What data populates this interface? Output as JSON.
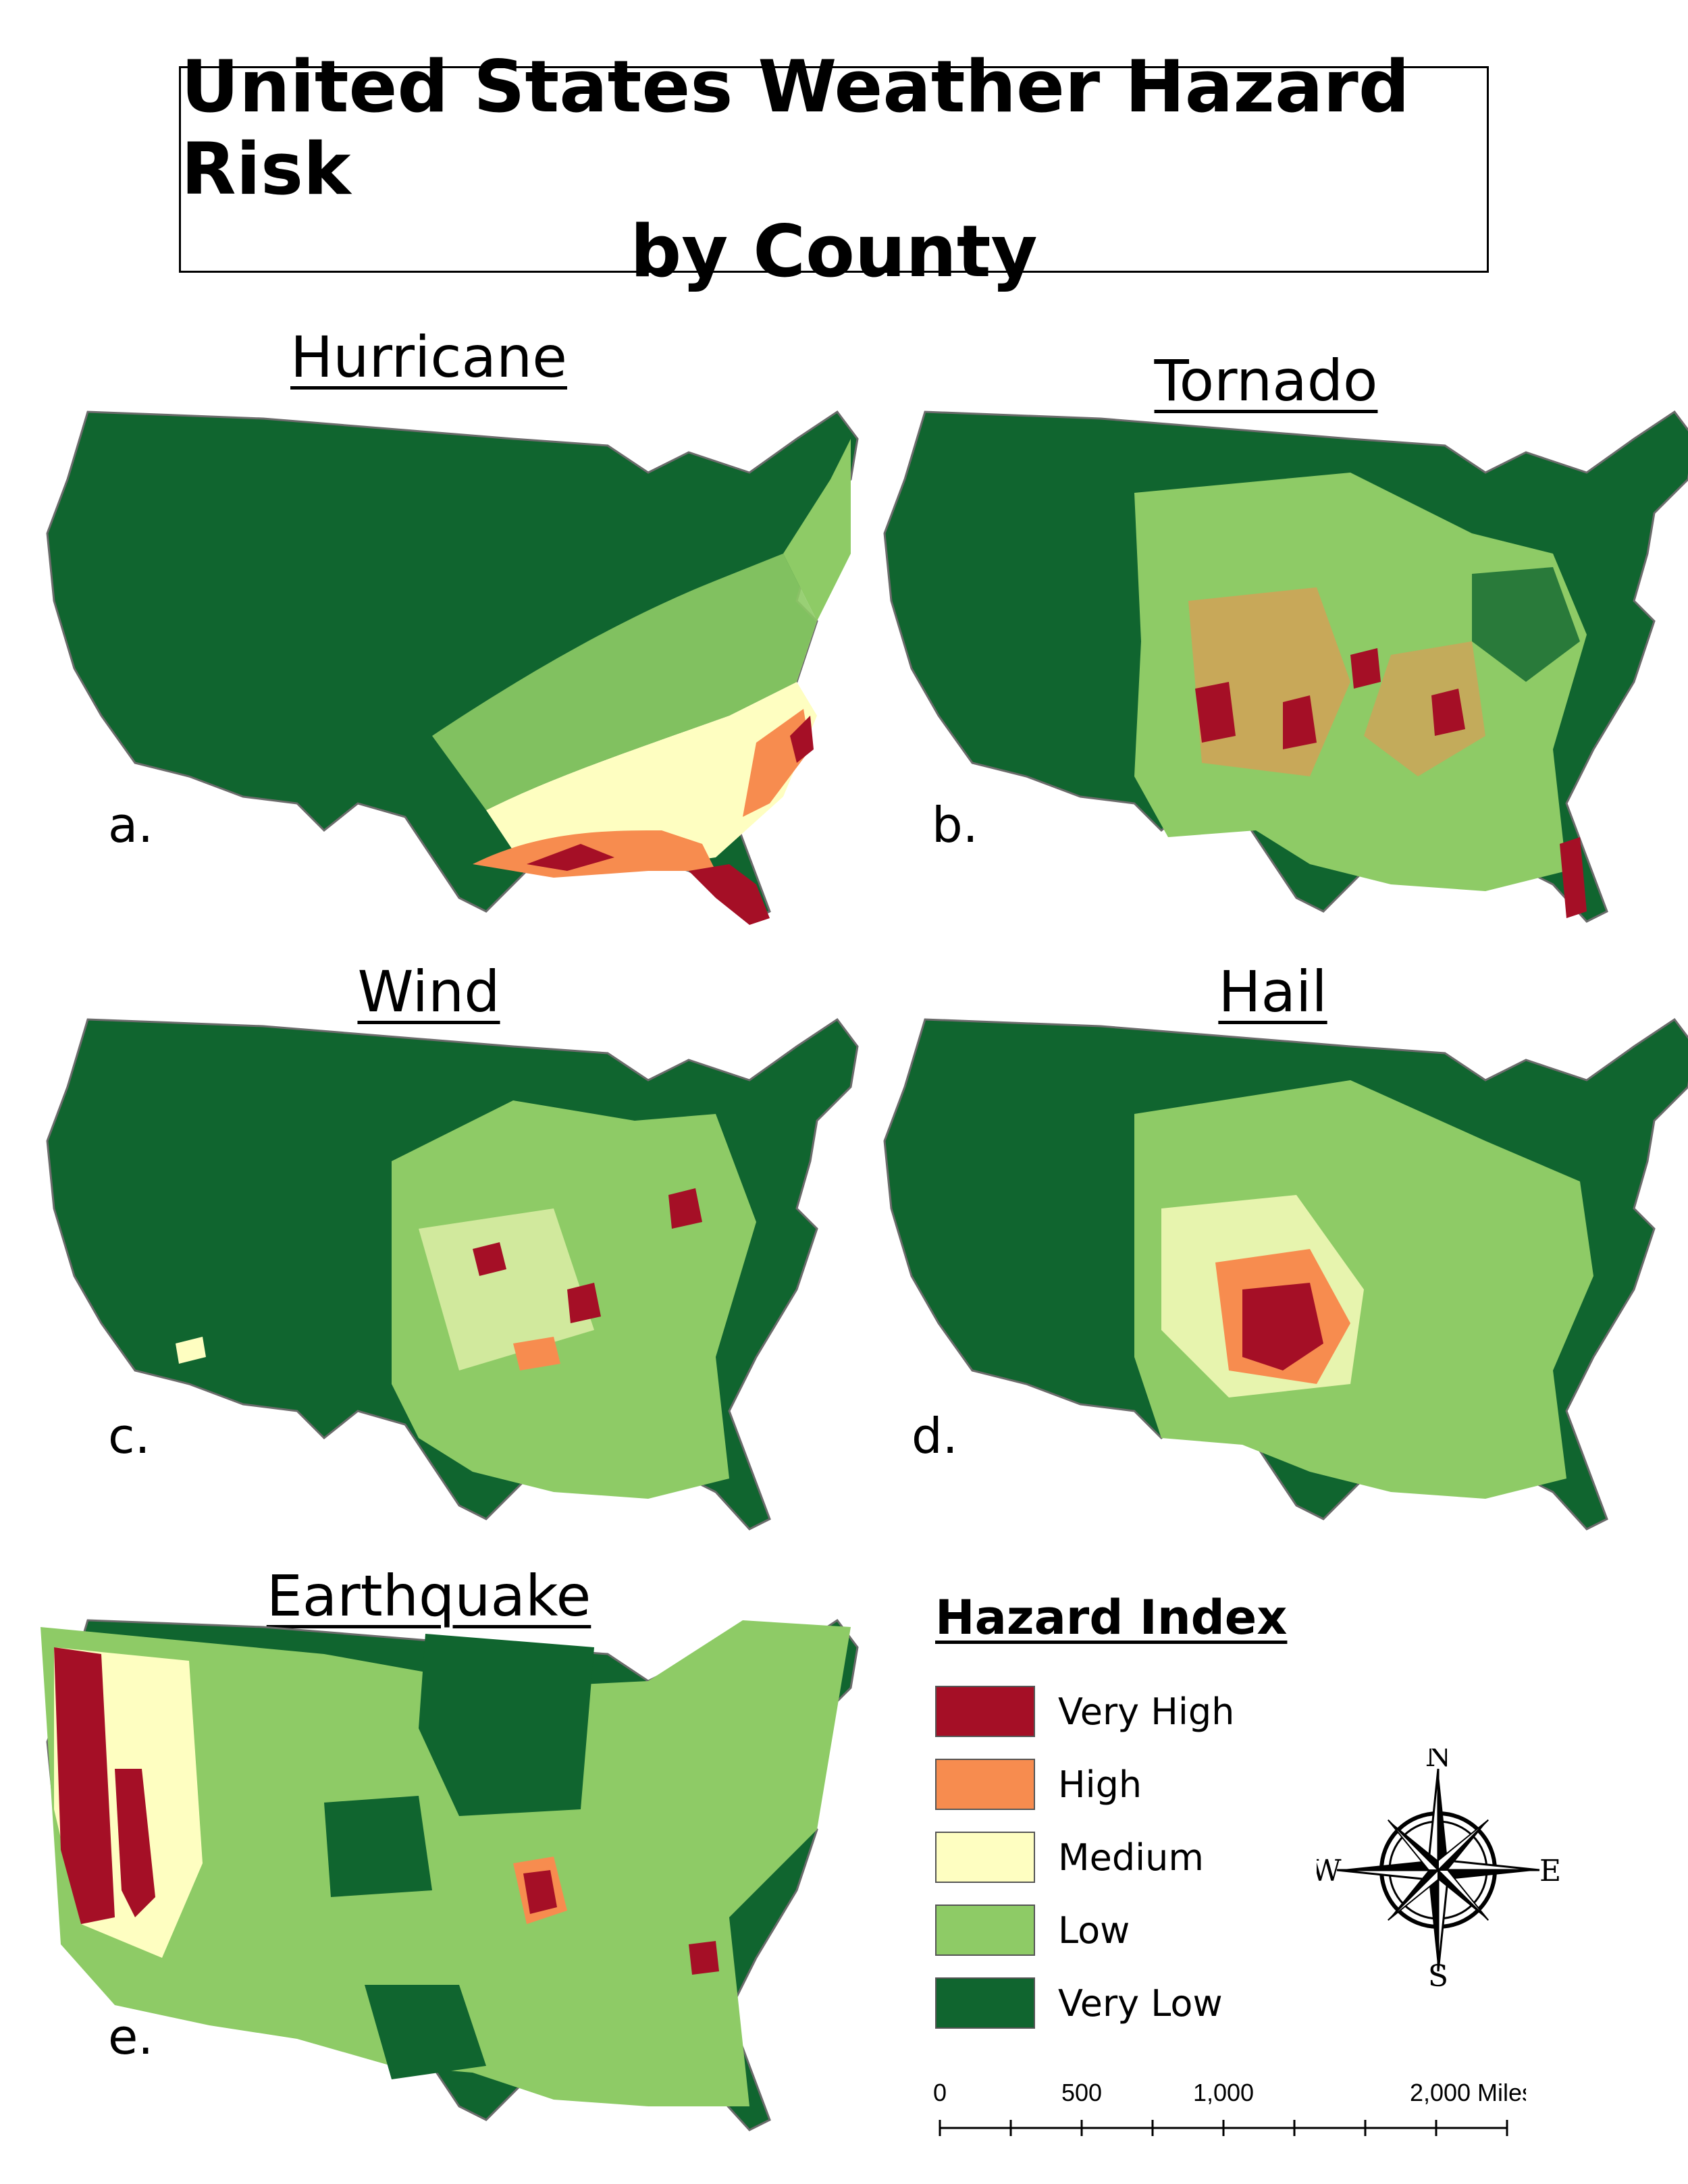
{
  "title": {
    "line1": "United States Weather Hazard Risk",
    "line2": "by County"
  },
  "panels": [
    {
      "id": "a",
      "title": "Hurricane",
      "letter": "a."
    },
    {
      "id": "b",
      "title": "Tornado",
      "letter": "b."
    },
    {
      "id": "c",
      "title": "Wind",
      "letter": "c."
    },
    {
      "id": "d",
      "title": "Hail",
      "letter": "d."
    },
    {
      "id": "e",
      "title": "Earthquake",
      "letter": "e."
    }
  ],
  "legend": {
    "title": "Hazard Index",
    "items": [
      {
        "label": "Very High",
        "color": "#a50f26"
      },
      {
        "label": "High",
        "color": "#f78c4f"
      },
      {
        "label": "Medium",
        "color": "#fefec1"
      },
      {
        "label": "Low",
        "color": "#8ecb66"
      },
      {
        "label": "Very Low",
        "color": "#10652f"
      }
    ]
  },
  "compass": {
    "n": "N",
    "s": "S",
    "e": "E",
    "w": "W"
  },
  "scale": {
    "ticks": [
      "0",
      "500",
      "1,000",
      "2,000 Miles"
    ]
  }
}
